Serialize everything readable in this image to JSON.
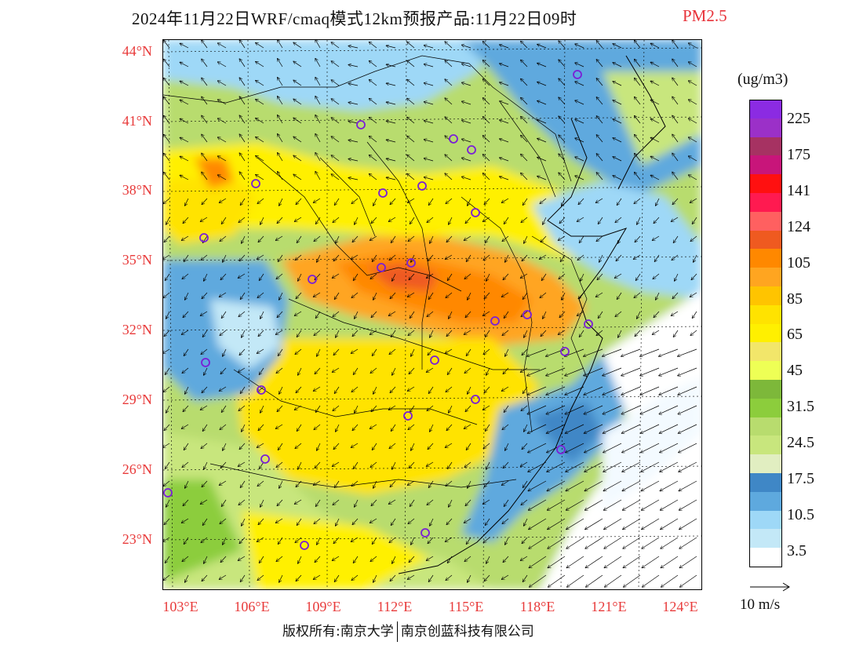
{
  "title": {
    "main": "2024年11月22日WRF/cmaq模式12km预报产品:11月22日09时",
    "variable": "PM2.5"
  },
  "axes": {
    "lat_labels": [
      "44°N",
      "41°N",
      "38°N",
      "35°N",
      "32°N",
      "29°N",
      "26°N",
      "23°N"
    ],
    "lon_labels": [
      "103°E",
      "106°E",
      "109°E",
      "112°E",
      "115°E",
      "118°E",
      "121°E",
      "124°E"
    ]
  },
  "colorbar": {
    "unit": "(ug/m3)",
    "labels": [
      "225",
      "175",
      "141",
      "124",
      "105",
      "85",
      "65",
      "45",
      "31.5",
      "24.5",
      "17.5",
      "10.5",
      "3.5"
    ],
    "colors": [
      "#8b2be2",
      "#9b30c8",
      "#a63262",
      "#c8157a",
      "#ff1010",
      "#ff1a50",
      "#ff6060",
      "#ef5a20",
      "#ff8800",
      "#ffa520",
      "#ffc400",
      "#ffe300",
      "#fff000",
      "#f2e66a",
      "#eeff55",
      "#7db83a",
      "#8ccd3c",
      "#b8dc6e",
      "#c8e67d",
      "#e1eec1",
      "#3f87c6",
      "#5ea9de",
      "#9ed8f7",
      "#c3e8f7",
      "#ffffff"
    ]
  },
  "wind_reference": {
    "label": "10 m/s"
  },
  "copyright": {
    "left": "版权所有:南京大学",
    "right": "南京创蓝科技有限公司"
  }
}
